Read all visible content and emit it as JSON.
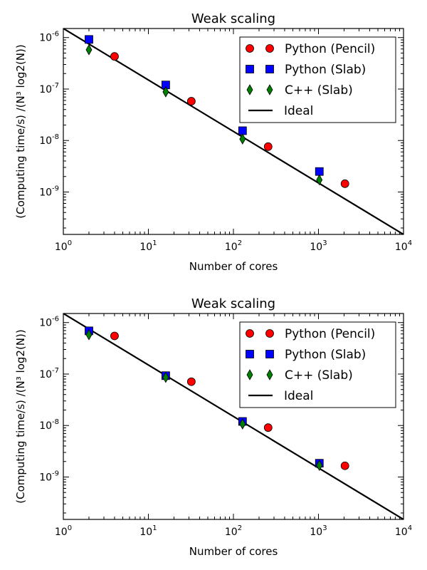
{
  "chart_data": [
    {
      "type": "scatter",
      "title": "Weak scaling",
      "xlabel": "Number of cores",
      "ylabel": "(Computing time/s) /(N³ log2(N))",
      "xscale": "log",
      "yscale": "log",
      "xlim": [
        1,
        10000
      ],
      "ylim": [
        1.5e-10,
        1.5e-06
      ],
      "x_ticks": [
        "10^0",
        "10^1",
        "10^2",
        "10^3",
        "10^4"
      ],
      "y_ticks": [
        "10^-9",
        "10^-8",
        "10^-7",
        "10^-6"
      ],
      "legend_position": "top-right",
      "series": [
        {
          "name": "Python (Pencil)",
          "marker": "circle",
          "color": "#ff0000",
          "x": [
            4,
            32,
            256,
            2048
          ],
          "y": [
            4.3e-07,
            5.8e-08,
            7.6e-09,
            1.45e-09
          ]
        },
        {
          "name": "Python (Slab)",
          "marker": "square",
          "color": "#0000ff",
          "x": [
            2,
            16,
            128,
            1024
          ],
          "y": [
            9.2e-07,
            1.2e-07,
            1.55e-08,
            2.5e-09
          ]
        },
        {
          "name": "C++ (Slab)",
          "marker": "diamond",
          "color": "#008000",
          "x": [
            2,
            16,
            128,
            1024
          ],
          "y": [
            5.8e-07,
            8.8e-08,
            1.07e-08,
            1.72e-09
          ]
        },
        {
          "name": "Ideal",
          "marker": "line",
          "color": "#000000",
          "x": [
            1,
            10000
          ],
          "y": [
            1.5e-06,
            1.5e-10
          ]
        }
      ]
    },
    {
      "type": "scatter",
      "title": "Weak scaling",
      "xlabel": "Number of cores",
      "ylabel": "(Computing time/s) /(N³ log2(N))",
      "xscale": "log",
      "yscale": "log",
      "xlim": [
        1,
        10000
      ],
      "ylim": [
        1.5e-10,
        1.5e-06
      ],
      "x_ticks": [
        "10^0",
        "10^1",
        "10^2",
        "10^3",
        "10^4"
      ],
      "y_ticks": [
        "10^-9",
        "10^-8",
        "10^-7",
        "10^-6"
      ],
      "legend_position": "top-right",
      "series": [
        {
          "name": "Python (Pencil)",
          "marker": "circle",
          "color": "#ff0000",
          "x": [
            4,
            32,
            256,
            2048
          ],
          "y": [
            5.5e-07,
            7.1e-08,
            9.1e-09,
            1.65e-09
          ]
        },
        {
          "name": "Python (Slab)",
          "marker": "square",
          "color": "#0000ff",
          "x": [
            2,
            16,
            128,
            1024
          ],
          "y": [
            6.9e-07,
            9.3e-08,
            1.2e-08,
            1.85e-09
          ]
        },
        {
          "name": "C++ (Slab)",
          "marker": "diamond",
          "color": "#008000",
          "x": [
            2,
            16,
            128,
            1024
          ],
          "y": [
            5.8e-07,
            8.6e-08,
            1.07e-08,
            1.68e-09
          ]
        },
        {
          "name": "Ideal",
          "marker": "line",
          "color": "#000000",
          "x": [
            1,
            10000
          ],
          "y": [
            1.5e-06,
            1.5e-10
          ]
        }
      ]
    }
  ]
}
